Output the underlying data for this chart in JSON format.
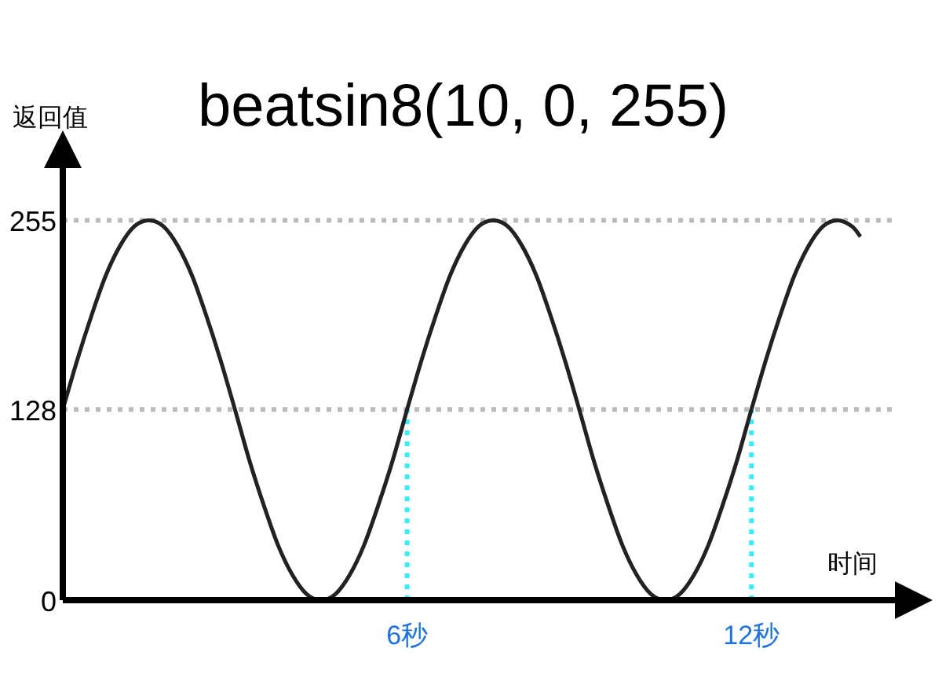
{
  "chart_data": {
    "type": "line",
    "title": "beatsin8(10, 0, 255)",
    "xlabel": "时间",
    "ylabel": "返回值",
    "x": [
      0,
      0.25,
      0.5,
      0.75,
      1,
      1.25,
      1.5,
      1.75,
      2,
      2.25,
      2.5,
      2.75,
      3,
      3.25,
      3.5,
      3.75,
      4,
      4.25,
      4.5,
      4.75,
      5,
      5.25,
      5.5,
      5.75,
      6,
      6.25,
      6.5,
      6.75,
      7,
      7.25,
      7.5,
      7.75,
      8,
      8.25,
      8.5,
      8.75,
      9,
      9.25,
      9.5,
      9.75,
      10,
      10.25,
      10.5,
      10.75,
      11,
      11.25,
      11.5,
      11.75,
      12,
      12.25,
      12.5,
      12.75,
      13,
      13.25,
      13.5,
      13.75,
      13.9
    ],
    "series": [
      {
        "color": "#222222",
        "values": [
          128,
          161,
          191,
          218,
          238,
          251,
          255,
          251,
          238,
          218,
          191,
          161,
          128,
          94,
          64,
          37,
          17,
          4,
          0,
          4,
          17,
          37,
          64,
          94,
          128,
          161,
          191,
          218,
          238,
          251,
          255,
          251,
          238,
          218,
          191,
          161,
          128,
          94,
          64,
          37,
          17,
          4,
          0,
          4,
          17,
          37,
          64,
          94,
          128,
          161,
          191,
          218,
          238,
          251,
          255,
          251,
          244
        ]
      }
    ],
    "xlim": [
      0,
      14.5
    ],
    "ylim": [
      0,
      290
    ],
    "xticks": [
      {
        "value": 6,
        "label": "6秒"
      },
      {
        "value": 12,
        "label": "12秒"
      }
    ],
    "yticks": [
      0,
      128,
      255
    ],
    "ref_lines": [
      {
        "axis": "y",
        "value": 255,
        "color": "#bbbbbb",
        "line_style": "dotted"
      },
      {
        "axis": "y",
        "value": 128,
        "color": "#bbbbbb",
        "line_style": "dotted"
      },
      {
        "axis": "x",
        "value": 6,
        "color": "#33eeff",
        "line_style": "dotted"
      },
      {
        "axis": "x",
        "value": 12,
        "color": "#33eeff",
        "line_style": "dotted"
      }
    ]
  }
}
